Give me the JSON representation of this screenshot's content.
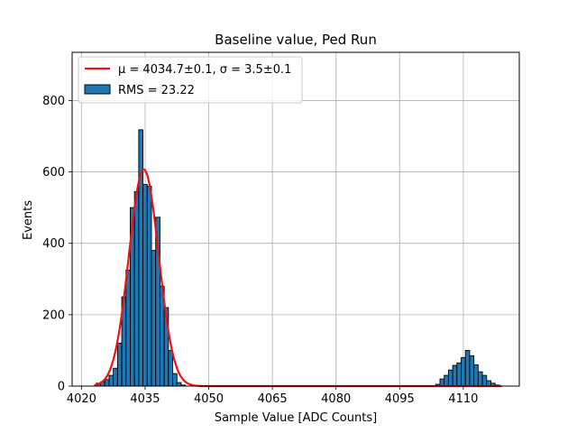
{
  "chart_data": {
    "type": "bar",
    "title": "Baseline value, Ped Run",
    "xlabel": "Sample Value [ADC Counts]",
    "ylabel": "Events",
    "xlim": [
      4017.8,
      4123.2
    ],
    "ylim": [
      0,
      935
    ],
    "xticks": [
      4020,
      4035,
      4050,
      4065,
      4080,
      4095,
      4110
    ],
    "yticks": [
      0,
      200,
      400,
      600,
      800
    ],
    "grid": true,
    "legend_position": "top-left",
    "legend": [
      {
        "label": "μ = 4034.7±0.1, σ = 3.5±0.1",
        "kind": "line",
        "color": "#ee1111"
      },
      {
        "label": "RMS = 23.22",
        "kind": "patch",
        "color": "#1f77b4"
      }
    ],
    "histogram": {
      "name": "RMS = 23.22",
      "bin_width": 1,
      "color": "#1f77b4",
      "edgecolor": "#000000",
      "bins": [
        {
          "x": 4024,
          "y": 8
        },
        {
          "x": 4025,
          "y": 12
        },
        {
          "x": 4026,
          "y": 18
        },
        {
          "x": 4027,
          "y": 30
        },
        {
          "x": 4028,
          "y": 50
        },
        {
          "x": 4029,
          "y": 120
        },
        {
          "x": 4030,
          "y": 250
        },
        {
          "x": 4031,
          "y": 325
        },
        {
          "x": 4032,
          "y": 500
        },
        {
          "x": 4033,
          "y": 545
        },
        {
          "x": 4034,
          "y": 718
        },
        {
          "x": 4035,
          "y": 565
        },
        {
          "x": 4036,
          "y": 560
        },
        {
          "x": 4037,
          "y": 380
        },
        {
          "x": 4038,
          "y": 473
        },
        {
          "x": 4039,
          "y": 280
        },
        {
          "x": 4040,
          "y": 220
        },
        {
          "x": 4041,
          "y": 100
        },
        {
          "x": 4042,
          "y": 35
        },
        {
          "x": 4043,
          "y": 10
        },
        {
          "x": 4044,
          "y": 3
        },
        {
          "x": 4104,
          "y": 5
        },
        {
          "x": 4105,
          "y": 20
        },
        {
          "x": 4106,
          "y": 30
        },
        {
          "x": 4107,
          "y": 45
        },
        {
          "x": 4108,
          "y": 58
        },
        {
          "x": 4109,
          "y": 65
        },
        {
          "x": 4110,
          "y": 80
        },
        {
          "x": 4111,
          "y": 100
        },
        {
          "x": 4112,
          "y": 85
        },
        {
          "x": 4113,
          "y": 60
        },
        {
          "x": 4114,
          "y": 40
        },
        {
          "x": 4115,
          "y": 30
        },
        {
          "x": 4116,
          "y": 15
        },
        {
          "x": 4117,
          "y": 8
        },
        {
          "x": 4118,
          "y": 3
        }
      ]
    },
    "fit": {
      "name": "μ = 4034.7±0.1, σ = 3.5±0.1",
      "type": "gaussian",
      "mu": 4034.7,
      "sigma": 3.5,
      "amplitude": 607,
      "x_range": [
        4023,
        4119
      ],
      "color": "#ee1111"
    }
  }
}
